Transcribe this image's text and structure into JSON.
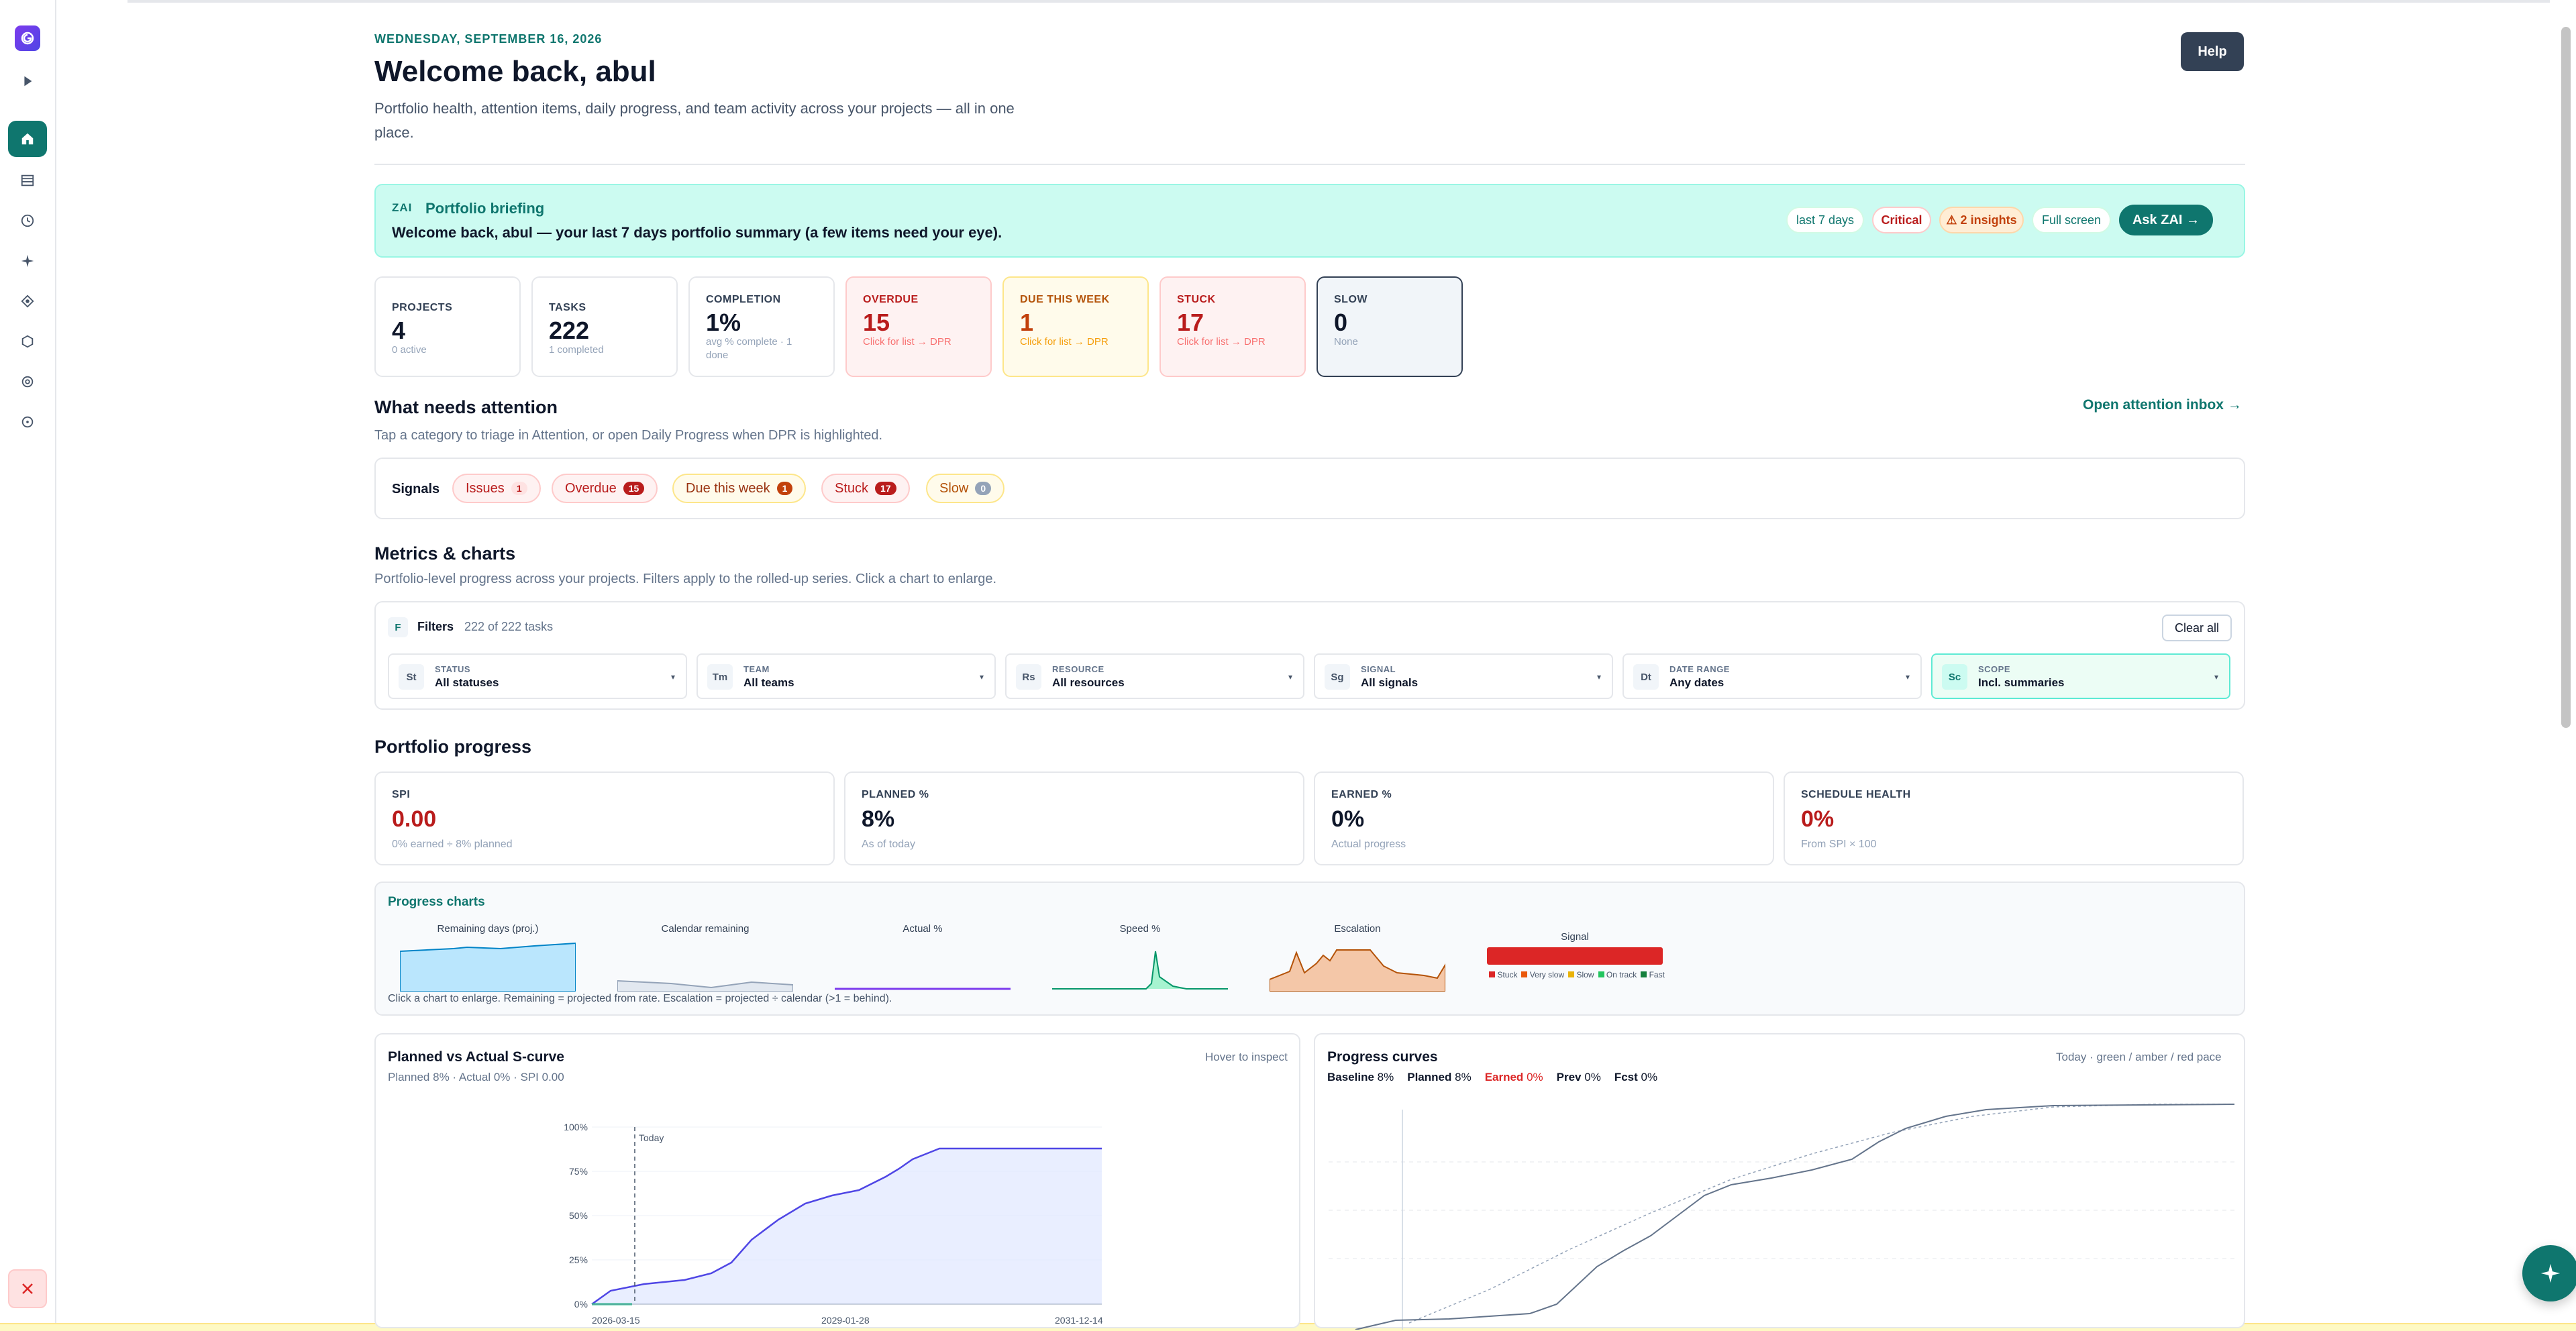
{
  "header": {
    "date": "WEDNESDAY, SEPTEMBER 16, 2026",
    "welcome": "Welcome back, abul",
    "subtitle": "Portfolio health, attention items, daily progress, and team activity across your projects — all in one place.",
    "help_label": "Help"
  },
  "briefing": {
    "tag": "ZAI",
    "title": "Portfolio briefing",
    "text": "Welcome back, abul — your last 7 days portfolio summary (a few items need your eye).",
    "pill_range": "last 7 days",
    "pill_severity": "Critical",
    "pill_insights": "⚠ 2 insights",
    "pill_fullscreen": "Full screen",
    "ask_label": "Ask ZAI →"
  },
  "kpis": [
    {
      "label": "PROJECTS",
      "value": "4",
      "sub": "0 active"
    },
    {
      "label": "TASKS",
      "value": "222",
      "sub": "1 completed"
    },
    {
      "label": "COMPLETION",
      "value": "1%",
      "sub": "avg % complete · 1 done"
    },
    {
      "label": "OVERDUE",
      "value": "15",
      "sub": "Click for list → DPR"
    },
    {
      "label": "DUE THIS WEEK",
      "value": "1",
      "sub": "Click for list → DPR"
    },
    {
      "label": "STUCK",
      "value": "17",
      "sub": "Click for list → DPR"
    },
    {
      "label": "SLOW",
      "value": "0",
      "sub": "None"
    }
  ],
  "attention": {
    "title": "What needs attention",
    "subtitle": "Tap a category to triage in Attention, or open Daily Progress when DPR is highlighted.",
    "inbox_link": "Open attention inbox →",
    "signals_label": "Signals",
    "chips": [
      {
        "label": "Issues",
        "count": "1"
      },
      {
        "label": "Overdue",
        "count": "15"
      },
      {
        "label": "Due this week",
        "count": "1"
      },
      {
        "label": "Stuck",
        "count": "17"
      },
      {
        "label": "Slow",
        "count": "0"
      }
    ]
  },
  "metrics": {
    "title": "Metrics & charts",
    "subtitle": "Portfolio-level progress across your projects. Filters apply to the rolled-up series. Click a chart to enlarge."
  },
  "filters": {
    "icon": "F",
    "title": "Filters",
    "count": "222 of 222 tasks",
    "clear_label": "Clear all",
    "selects": [
      {
        "abbr": "St",
        "label": "STATUS",
        "value": "All statuses"
      },
      {
        "abbr": "Tm",
        "label": "TEAM",
        "value": "All teams"
      },
      {
        "abbr": "Rs",
        "label": "RESOURCE",
        "value": "All resources"
      },
      {
        "abbr": "Sg",
        "label": "SIGNAL",
        "value": "All signals"
      },
      {
        "abbr": "Dt",
        "label": "DATE RANGE",
        "value": "Any dates"
      },
      {
        "abbr": "Sc",
        "label": "SCOPE",
        "value": "Incl. summaries"
      }
    ]
  },
  "progress": {
    "title": "Portfolio progress",
    "cards": [
      {
        "label": "SPI",
        "value": "0.00",
        "sub": "0% earned ÷ 8% planned"
      },
      {
        "label": "PLANNED %",
        "value": "8%",
        "sub": "As of today"
      },
      {
        "label": "EARNED %",
        "value": "0%",
        "sub": "Actual progress"
      },
      {
        "label": "SCHEDULE HEALTH",
        "value": "0%",
        "sub": "From SPI × 100"
      }
    ]
  },
  "progress_charts": {
    "title": "Progress charts",
    "sparks": [
      "Remaining days (proj.)",
      "Calendar remaining",
      "Actual %",
      "Speed %",
      "Escalation",
      "Signal"
    ],
    "legend": [
      "Stuck",
      "Very slow",
      "Slow",
      "On track",
      "Fast"
    ],
    "note": "Click a chart to enlarge. Remaining = projected from rate. Escalation = projected ÷ calendar (>1 = behind)."
  },
  "scurve": {
    "title": "Planned vs Actual S-curve",
    "subtitle": "Planned 8% · Actual 0% · SPI 0.00",
    "hint": "Hover to inspect",
    "today_label": "Today",
    "y_ticks": [
      "100%",
      "75%",
      "50%",
      "25%",
      "0%"
    ],
    "x_ticks": [
      "2026-03-15",
      "2029-01-28",
      "2031-12-14"
    ]
  },
  "curves": {
    "title": "Progress curves",
    "hint": "Today · green / amber / red pace",
    "legend": [
      {
        "name": "Baseline",
        "value": "8%"
      },
      {
        "name": "Planned",
        "value": "8%"
      },
      {
        "name": "Earned",
        "value": "0%"
      },
      {
        "name": "Prev",
        "value": "0%"
      },
      {
        "name": "Fcst",
        "value": "0%"
      }
    ]
  },
  "colors": {
    "accent": "#0f766e",
    "danger": "#b91c1c",
    "warning": "#c2410c",
    "purple": "#4f46e5"
  }
}
